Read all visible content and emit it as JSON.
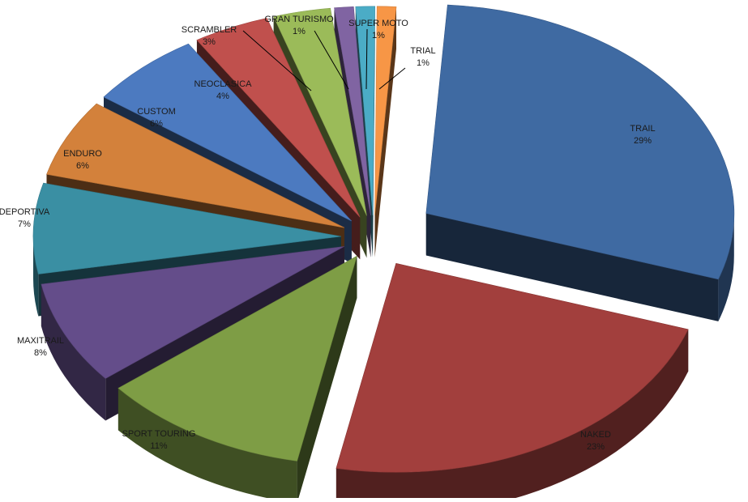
{
  "chart_data": {
    "type": "pie",
    "style": "3d-exploded",
    "title": "",
    "legend": "none",
    "categories": [
      "TRAIL",
      "NAKED",
      "SPORT TOURING",
      "MAXITRAIL",
      "DEPORTIVA",
      "ENDURO",
      "CUSTOM",
      "NEOCLASICA",
      "SCRAMBLER",
      "GRAN TURISMO",
      "SUPER MOTO",
      "TRIAL"
    ],
    "values": [
      29,
      23,
      11,
      8,
      7,
      6,
      6,
      4,
      3,
      1,
      1,
      1
    ],
    "labels": [
      "29%",
      "23%",
      "11%",
      "8%",
      "7%",
      "6%",
      "6%",
      "4%",
      "3%",
      "1%",
      "1%",
      "1%"
    ],
    "colors": [
      "#3F6AA2",
      "#A23F3D",
      "#7E9D45",
      "#644D8A",
      "#3A8FA3",
      "#D3813B",
      "#4C7AC0",
      "#C0504D",
      "#9BBB59",
      "#8064A2",
      "#4BACC6",
      "#F79646"
    ]
  }
}
